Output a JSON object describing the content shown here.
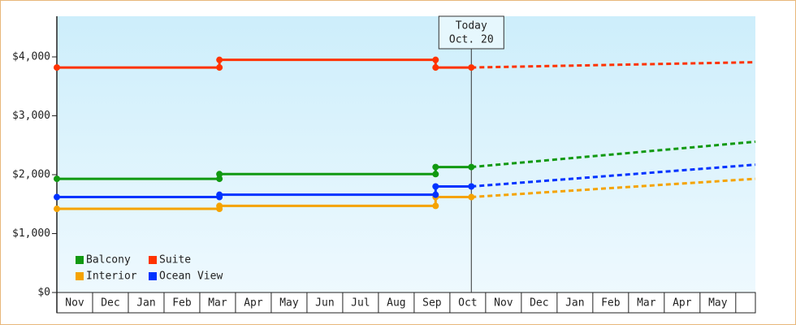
{
  "chart_data": {
    "type": "step-line",
    "xlim": [
      0,
      19.55
    ],
    "xticks": [
      {
        "value": 0.5,
        "label": "Nov"
      },
      {
        "value": 1.5,
        "label": "Dec"
      },
      {
        "value": 2.5,
        "label": "Jan"
      },
      {
        "value": 3.5,
        "label": "Feb"
      },
      {
        "value": 4.5,
        "label": "Mar"
      },
      {
        "value": 5.5,
        "label": "Apr"
      },
      {
        "value": 6.5,
        "label": "May"
      },
      {
        "value": 7.5,
        "label": "Jun"
      },
      {
        "value": 8.5,
        "label": "Jul"
      },
      {
        "value": 9.5,
        "label": "Aug"
      },
      {
        "value": 10.5,
        "label": "Sep"
      },
      {
        "value": 11.5,
        "label": "Oct"
      },
      {
        "value": 12.5,
        "label": "Nov"
      },
      {
        "value": 13.5,
        "label": "Dec"
      },
      {
        "value": 14.5,
        "label": "Jan"
      },
      {
        "value": 15.5,
        "label": "Feb"
      },
      {
        "value": 16.5,
        "label": "Mar"
      },
      {
        "value": 17.5,
        "label": "Apr"
      },
      {
        "value": 18.5,
        "label": "May"
      }
    ],
    "ylim": [
      0,
      4690
    ],
    "yticks": [
      {
        "value": 0,
        "label": "$0"
      },
      {
        "value": 1000,
        "label": "$1,000"
      },
      {
        "value": 2000,
        "label": "$2,000"
      },
      {
        "value": 3000,
        "label": "$3,000"
      },
      {
        "value": 4000,
        "label": "$4,000"
      }
    ],
    "annotation": {
      "x": 11.6,
      "lines": [
        "Today",
        "Oct. 20"
      ]
    },
    "x": [
      0,
      4.55,
      4.55,
      10.6,
      10.6,
      11.6
    ],
    "forecast_x": [
      11.6,
      19.55
    ],
    "series": [
      {
        "name": "Balcony",
        "color": "#119911",
        "values": [
          1930,
          1930,
          2010,
          2010,
          2130,
          2130
        ],
        "forecast_values": [
          2130,
          2560
        ]
      },
      {
        "name": "Suite",
        "color": "#ff3300",
        "values": [
          3820,
          3820,
          3950,
          3950,
          3820,
          3820
        ],
        "forecast_values": [
          3820,
          3910
        ]
      },
      {
        "name": "Interior",
        "color": "#f5a300",
        "values": [
          1420,
          1420,
          1470,
          1470,
          1620,
          1620
        ],
        "forecast_values": [
          1620,
          1930
        ]
      },
      {
        "name": "Ocean View",
        "color": "#0033ff",
        "values": [
          1620,
          1620,
          1660,
          1660,
          1800,
          1800
        ],
        "forecast_values": [
          1800,
          2170
        ]
      }
    ]
  }
}
